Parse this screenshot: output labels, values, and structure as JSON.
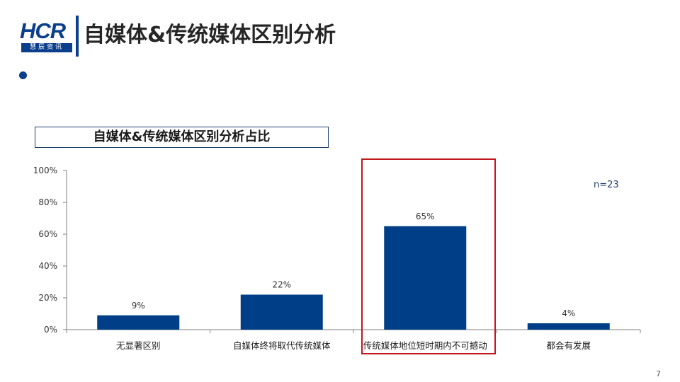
{
  "logo": {
    "main": "HCR",
    "sub": "慧辰资讯"
  },
  "page_title": "自媒体&传统媒体区别分析",
  "page_number": "7",
  "colors": {
    "bar": "#003f87",
    "accent": "#0b3f8c",
    "highlight": "#c0161c"
  },
  "chart_data": {
    "type": "bar",
    "title": "自媒体&传统媒体区别分析占比",
    "annotation": "n=23",
    "categories": [
      "无显著区别",
      "自媒体终将取代传统媒体",
      "传统媒体地位短时期内不可撼动",
      "都会有发展"
    ],
    "values": [
      9,
      22,
      65,
      4
    ],
    "data_labels": [
      "9%",
      "22%",
      "65%",
      "4%"
    ],
    "ylim": [
      0,
      100
    ],
    "yticks": [
      "0%",
      "20%",
      "40%",
      "60%",
      "80%",
      "100%"
    ],
    "xlabel": "",
    "ylabel": "",
    "grid": false,
    "highlighted_category": 2
  }
}
